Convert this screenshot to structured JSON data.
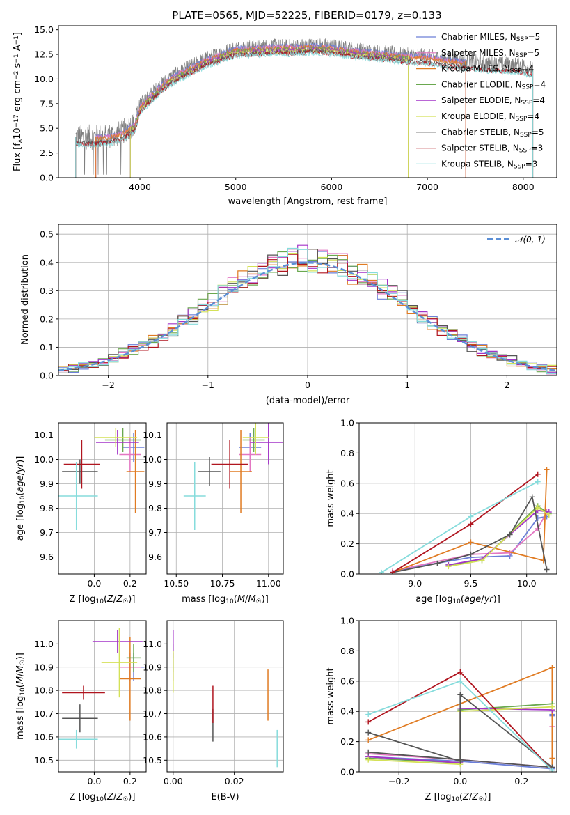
{
  "figure": {
    "title": "PLATE=0565, MJD=52225, FIBERID=0179, z=0.133"
  },
  "series_styles": [
    {
      "name": "Chabrier MILES, N_SSP=5",
      "label_pre": "Chabrier MILES, N",
      "label_sub": "SSP",
      "label_post": "=5",
      "color": "#6c7fd8"
    },
    {
      "name": "Salpeter MILES, N_SSP=5",
      "label_pre": "Salpeter MILES, N",
      "label_sub": "SSP",
      "label_post": "=5",
      "color": "#e377c2"
    },
    {
      "name": "Kroupa MILES, N_SSP=4",
      "label_pre": "Kroupa MILES, N",
      "label_sub": "SSP",
      "label_post": "=4",
      "color": "#e07b22"
    },
    {
      "name": "Chabrier ELODIE, N_SSP=4",
      "label_pre": "Chabrier ELODIE, N",
      "label_sub": "SSP",
      "label_post": "=4",
      "color": "#6aa84f"
    },
    {
      "name": "Salpeter ELODIE, N_SSP=4",
      "label_pre": "Salpeter ELODIE, N",
      "label_sub": "SSP",
      "label_post": "=4",
      "color": "#a334c8"
    },
    {
      "name": "Kroupa ELODIE, N_SSP=4",
      "label_pre": "Kroupa ELODIE, N",
      "label_sub": "SSP",
      "label_post": "=4",
      "color": "#d4e157"
    },
    {
      "name": "Chabrier STELIB, N_SSP=5",
      "label_pre": "Chabrier STELIB, N",
      "label_sub": "SSP",
      "label_post": "=5",
      "color": "#555555"
    },
    {
      "name": "Salpeter STELIB, N_SSP=3",
      "label_pre": "Salpeter STELIB, N",
      "label_sub": "SSP",
      "label_post": "=3",
      "color": "#b0151f"
    },
    {
      "name": "Kroupa STELIB, N_SSP=3",
      "label_pre": "Kroupa STELIB, N",
      "label_sub": "SSP",
      "label_post": "=3",
      "color": "#86dcdc"
    }
  ],
  "chart_data": [
    {
      "type": "line",
      "title": "PLATE=0565, MJD=52225, FIBERID=0179, z=0.133",
      "xlabel": "wavelength [Angstrom, rest frame]",
      "ylabel": "Flux [f_λ 10^-17 erg cm^-2 s^-1 A^-1]",
      "xlim": [
        3150,
        8350
      ],
      "ylim": [
        0,
        15.4
      ],
      "xticks": [
        4000,
        5000,
        6000,
        7000,
        8000
      ],
      "yticks": [
        0.0,
        2.5,
        5.0,
        7.5,
        10.0,
        12.5,
        15.0
      ],
      "ytick_labels": [
        "0.0",
        "2.5",
        "5.0",
        "7.5",
        "10.0",
        "12.5",
        "15.0"
      ],
      "grid": false,
      "legend": "right",
      "data_line_color": "#808080",
      "continuum": {
        "x": [
          3330,
          3500,
          3650,
          3800,
          3950,
          4000,
          4100,
          4200,
          4300,
          4400,
          4500,
          4600,
          4700,
          4800,
          4900,
          5000,
          5200,
          5400,
          5600,
          5800,
          6000,
          6200,
          6400,
          6600,
          6800,
          7000,
          7200,
          7400,
          7600,
          7800,
          8000,
          8100
        ],
        "y": [
          4.1,
          4.1,
          4.2,
          4.5,
          5.5,
          7.3,
          8.3,
          9.2,
          10.0,
          10.6,
          11.1,
          11.6,
          12.1,
          12.4,
          12.8,
          13.1,
          13.2,
          13.3,
          13.3,
          13.4,
          13.3,
          13.0,
          12.8,
          12.6,
          12.4,
          12.3,
          12.0,
          11.8,
          11.6,
          11.5,
          11.4,
          11.0
        ]
      },
      "series": [
        {
          "name": "Chabrier MILES, N_SSP=5",
          "x_range": [
            3540,
            7400
          ]
        },
        {
          "name": "Salpeter MILES, N_SSP=5",
          "x_range": [
            3540,
            7400
          ]
        },
        {
          "name": "Kroupa MILES, N_SSP=4",
          "x_range": [
            3540,
            7400
          ]
        },
        {
          "name": "Chabrier ELODIE, N_SSP=4",
          "x_range": [
            3900,
            6800
          ]
        },
        {
          "name": "Salpeter ELODIE, N_SSP=4",
          "x_range": [
            3900,
            6800
          ]
        },
        {
          "name": "Kroupa ELODIE, N_SSP=4",
          "x_range": [
            3900,
            6800
          ]
        },
        {
          "name": "Chabrier STELIB, N_SSP=5",
          "x_range": [
            3330,
            8100
          ]
        },
        {
          "name": "Salpeter STELIB, N_SSP=3",
          "x_range": [
            3330,
            8100
          ]
        },
        {
          "name": "Kroupa STELIB, N_SSP=3",
          "x_range": [
            3330,
            8100
          ]
        }
      ]
    },
    {
      "type": "step-histogram",
      "xlabel": "(data-model)/error",
      "ylabel": "Normed distribution",
      "xlim": [
        -2.5,
        2.5
      ],
      "ylim": [
        0,
        0.535
      ],
      "xticks": [
        -2,
        -1,
        0,
        1,
        2
      ],
      "xtick_labels": [
        "−2",
        "−1",
        "0",
        "1",
        "2"
      ],
      "yticks": [
        0.0,
        0.1,
        0.2,
        0.3,
        0.4,
        0.5
      ],
      "ytick_labels": [
        "0.0",
        "0.1",
        "0.2",
        "0.3",
        "0.4",
        "0.5"
      ],
      "grid": true,
      "legend": "top-right",
      "reference_curve": {
        "name": "N(0,1)",
        "label": "𝒩(0, 1)",
        "color": "#5b8fd6",
        "style": "dashed",
        "mean": 0,
        "sigma": 1
      },
      "bin_width": 0.1,
      "bin_range": [
        -2.5,
        2.5
      ],
      "bin_heights_note": "values approximated per series around the N(0,1) envelope"
    },
    {
      "type": "scatter-errorbar",
      "xlabel": "Z [log10(Z/Z☉)]",
      "ylabel": "age [log10(age/yr)]",
      "xlim": [
        -0.2,
        0.29
      ],
      "ylim": [
        9.53,
        10.15
      ],
      "xticks": [
        0.0,
        0.2
      ],
      "xtick_labels": [
        "0.0",
        "0.2"
      ],
      "yticks": [
        9.6,
        9.7,
        9.8,
        9.9,
        10.0,
        10.1
      ],
      "ytick_labels": [
        "9.6",
        "9.7",
        "9.8",
        "9.9",
        "10.0",
        "10.1"
      ],
      "grid": true,
      "points": [
        {
          "series": "Chabrier MILES, N_SSP=5",
          "x": 0.22,
          "xerr": 0.06,
          "y": 10.05,
          "yerr": 0.06
        },
        {
          "series": "Salpeter MILES, N_SSP=5",
          "x": 0.2,
          "xerr": 0.06,
          "y": 10.02,
          "yerr": 0.07
        },
        {
          "series": "Kroupa MILES, N_SSP=4",
          "x": 0.23,
          "xerr": 0.05,
          "y": 9.95,
          "yerr": 0.17
        },
        {
          "series": "Chabrier ELODIE, N_SSP=4",
          "x": 0.16,
          "xerr": 0.1,
          "y": 10.08,
          "yerr": 0.05
        },
        {
          "series": "Salpeter ELODIE, N_SSP=4",
          "x": 0.13,
          "xerr": 0.12,
          "y": 10.07,
          "yerr": 0.05
        },
        {
          "series": "Kroupa ELODIE, N_SSP=4",
          "x": 0.12,
          "xerr": 0.12,
          "y": 10.09,
          "yerr": 0.04
        },
        {
          "series": "Chabrier STELIB, N_SSP=5",
          "x": -0.08,
          "xerr": 0.1,
          "y": 9.95,
          "yerr": 0.05
        },
        {
          "series": "Salpeter STELIB, N_SSP=3",
          "x": -0.07,
          "xerr": 0.1,
          "y": 9.98,
          "yerr": 0.1
        },
        {
          "series": "Kroupa STELIB, N_SSP=3",
          "x": -0.1,
          "xerr": 0.12,
          "y": 9.85,
          "yerr": 0.14
        }
      ]
    },
    {
      "type": "scatter-errorbar",
      "xlabel": "mass [log10(M/M☉)]",
      "ylabel": "",
      "xlim": [
        10.45,
        11.08
      ],
      "ylim": [
        9.53,
        10.15
      ],
      "xticks": [
        10.5,
        10.75,
        11.0
      ],
      "xtick_labels": [
        "10.50",
        "10.75",
        "11.00"
      ],
      "yticks": [
        9.6,
        9.7,
        9.8,
        9.9,
        10.0,
        10.1
      ],
      "ytick_labels": [
        "9.6",
        "9.7",
        "9.8",
        "9.9",
        "10.0",
        "10.1"
      ],
      "grid": true,
      "points": [
        {
          "series": "Chabrier MILES, N_SSP=5",
          "x": 10.9,
          "xerr": 0.06,
          "y": 10.05,
          "yerr": 0.06
        },
        {
          "series": "Salpeter MILES, N_SSP=5",
          "x": 10.9,
          "xerr": 0.06,
          "y": 10.02,
          "yerr": 0.07
        },
        {
          "series": "Kroupa MILES, N_SSP=4",
          "x": 10.85,
          "xerr": 0.06,
          "y": 9.95,
          "yerr": 0.17
        },
        {
          "series": "Chabrier ELODIE, N_SSP=4",
          "x": 10.92,
          "xerr": 0.06,
          "y": 10.08,
          "yerr": 0.05
        },
        {
          "series": "Salpeter ELODIE, N_SSP=4",
          "x": 11.0,
          "xerr": 0.1,
          "y": 10.07,
          "yerr": 0.09
        },
        {
          "series": "Kroupa ELODIE, N_SSP=4",
          "x": 10.93,
          "xerr": 0.07,
          "y": 10.09,
          "yerr": 0.07
        },
        {
          "series": "Chabrier STELIB, N_SSP=5",
          "x": 10.68,
          "xerr": 0.06,
          "y": 9.95,
          "yerr": 0.06
        },
        {
          "series": "Salpeter STELIB, N_SSP=3",
          "x": 10.79,
          "xerr": 0.1,
          "y": 9.98,
          "yerr": 0.1
        },
        {
          "series": "Kroupa STELIB, N_SSP=3",
          "x": 10.6,
          "xerr": 0.06,
          "y": 9.85,
          "yerr": 0.14
        }
      ]
    },
    {
      "type": "line",
      "xlabel": "age [log10(age/yr)]",
      "ylabel": "mass weight",
      "xlim": [
        8.5,
        10.27
      ],
      "ylim": [
        0,
        1
      ],
      "xticks": [
        9.0,
        9.5,
        10.0
      ],
      "xtick_labels": [
        "9.0",
        "9.5",
        "10.0"
      ],
      "yticks": [
        0,
        0.2,
        0.4,
        0.6,
        0.8,
        1.0
      ],
      "ytick_labels": [
        "0.0",
        "0.2",
        "0.4",
        "0.6",
        "0.8",
        "1.0"
      ],
      "grid": true,
      "series": [
        {
          "name": "Chabrier MILES, N_SSP=5",
          "x": [
            8.8,
            9.5,
            9.85,
            10.1,
            10.18
          ],
          "y": [
            0.02,
            0.11,
            0.12,
            0.37,
            0.38
          ]
        },
        {
          "name": "Salpeter MILES, N_SSP=5",
          "x": [
            8.8,
            9.5,
            9.85,
            10.1,
            10.18
          ],
          "y": [
            0.02,
            0.13,
            0.14,
            0.3,
            0.41
          ]
        },
        {
          "name": "Kroupa MILES, N_SSP=4",
          "x": [
            8.8,
            9.5,
            10.15,
            10.18
          ],
          "y": [
            0.01,
            0.21,
            0.09,
            0.69
          ]
        },
        {
          "name": "Chabrier ELODIE, N_SSP=4",
          "x": [
            9.3,
            9.6,
            10.1,
            10.2
          ],
          "y": [
            0.06,
            0.09,
            0.45,
            0.4
          ]
        },
        {
          "name": "Salpeter ELODIE, N_SSP=4",
          "x": [
            9.3,
            9.6,
            10.1,
            10.2
          ],
          "y": [
            0.06,
            0.1,
            0.42,
            0.41
          ]
        },
        {
          "name": "Kroupa ELODIE, N_SSP=4",
          "x": [
            9.3,
            9.6,
            10.1,
            10.2
          ],
          "y": [
            0.05,
            0.09,
            0.44,
            0.39
          ]
        },
        {
          "name": "Chabrier STELIB, N_SSP=5",
          "x": [
            8.8,
            9.2,
            9.5,
            9.85,
            10.05,
            10.18
          ],
          "y": [
            0.01,
            0.07,
            0.13,
            0.26,
            0.51,
            0.03
          ]
        },
        {
          "name": "Salpeter STELIB, N_SSP=3",
          "x": [
            8.8,
            9.5,
            10.1
          ],
          "y": [
            0.01,
            0.33,
            0.66
          ]
        },
        {
          "name": "Kroupa STELIB, N_SSP=3",
          "x": [
            8.7,
            9.5,
            10.1
          ],
          "y": [
            0.01,
            0.38,
            0.61
          ]
        }
      ]
    },
    {
      "type": "scatter-errorbar",
      "xlabel": "Z [log10(Z/Z☉)]",
      "ylabel": "mass [log10(M/M☉)]",
      "xlim": [
        -0.2,
        0.29
      ],
      "ylim": [
        10.45,
        11.1
      ],
      "xticks": [
        0.0,
        0.2
      ],
      "xtick_labels": [
        "0.0",
        "0.2"
      ],
      "yticks": [
        10.5,
        10.6,
        10.7,
        10.8,
        10.9,
        11.0
      ],
      "ytick_labels": [
        "10.5",
        "10.6",
        "10.7",
        "10.8",
        "10.9",
        "11.0"
      ],
      "grid": true,
      "points": [
        {
          "series": "Chabrier MILES, N_SSP=5",
          "x": 0.22,
          "xerr": 0.06,
          "y": 10.9,
          "yerr": 0.06
        },
        {
          "series": "Salpeter MILES, N_SSP=5",
          "x": 0.2,
          "xerr": 0.06,
          "y": 10.9,
          "yerr": 0.06
        },
        {
          "series": "Kroupa MILES, N_SSP=4",
          "x": 0.2,
          "xerr": 0.06,
          "y": 10.85,
          "yerr": 0.18
        },
        {
          "series": "Chabrier ELODIE, N_SSP=4",
          "x": 0.22,
          "xerr": 0.04,
          "y": 10.94,
          "yerr": 0.06
        },
        {
          "series": "Salpeter ELODIE, N_SSP=4",
          "x": 0.13,
          "xerr": 0.14,
          "y": 11.01,
          "yerr": 0.05
        },
        {
          "series": "Kroupa ELODIE, N_SSP=4",
          "x": 0.14,
          "xerr": 0.1,
          "y": 10.92,
          "yerr": 0.15
        },
        {
          "series": "Chabrier STELIB, N_SSP=5",
          "x": -0.08,
          "xerr": 0.1,
          "y": 10.68,
          "yerr": 0.06
        },
        {
          "series": "Salpeter STELIB, N_SSP=3",
          "x": -0.06,
          "xerr": 0.12,
          "y": 10.79,
          "yerr": 0.03
        },
        {
          "series": "Kroupa STELIB, N_SSP=3",
          "x": -0.1,
          "xerr": 0.12,
          "y": 10.59,
          "yerr": 0.04
        }
      ]
    },
    {
      "type": "scatter-errorbar",
      "xlabel": "E(B-V)",
      "ylabel": "",
      "xlim": [
        -0.002,
        0.036
      ],
      "ylim": [
        10.45,
        11.1
      ],
      "xticks": [
        0.0,
        0.02
      ],
      "xtick_labels": [
        "0.00",
        "0.02"
      ],
      "yticks": [
        10.5,
        10.6,
        10.7,
        10.8,
        10.9,
        11.0
      ],
      "ytick_labels": [
        "10.5",
        "10.6",
        "10.7",
        "10.8",
        "10.9",
        "11.0"
      ],
      "grid": true,
      "points": [
        {
          "series": "Chabrier MILES, N_SSP=5",
          "x": 0.0,
          "y": 10.9,
          "yerr": 0.06
        },
        {
          "series": "Salpeter MILES, N_SSP=5",
          "x": 0.0,
          "y": 10.9,
          "yerr": 0.06
        },
        {
          "series": "Kroupa MILES, N_SSP=4",
          "x": 0.031,
          "y": 10.78,
          "yerr": 0.11
        },
        {
          "series": "Chabrier ELODIE, N_SSP=4",
          "x": 0.0,
          "y": 10.94,
          "yerr": 0.06
        },
        {
          "series": "Salpeter ELODIE, N_SSP=4",
          "x": 0.0,
          "y": 11.0,
          "yerr": 0.06
        },
        {
          "series": "Kroupa ELODIE, N_SSP=4",
          "x": 0.0,
          "y": 10.88,
          "yerr": 0.09
        },
        {
          "series": "Chabrier STELIB, N_SSP=5",
          "x": 0.013,
          "y": 10.65,
          "yerr": 0.07
        },
        {
          "series": "Salpeter STELIB, N_SSP=3",
          "x": 0.013,
          "y": 10.74,
          "yerr": 0.08
        },
        {
          "series": "Kroupa STELIB, N_SSP=3",
          "x": 0.034,
          "y": 10.55,
          "yerr": 0.08
        }
      ]
    },
    {
      "type": "line",
      "xlabel": "Z [log10(Z/Z☉)]",
      "ylabel": "mass weight",
      "xlim": [
        -0.33,
        0.315
      ],
      "ylim": [
        0,
        1
      ],
      "xticks": [
        -0.2,
        0.0,
        0.2
      ],
      "xtick_labels": [
        "−0.2",
        "0.0",
        "0.2"
      ],
      "yticks": [
        0,
        0.2,
        0.4,
        0.6,
        0.8,
        1.0
      ],
      "ytick_labels": [
        "0.0",
        "0.2",
        "0.4",
        "0.6",
        "0.8",
        "1.0"
      ],
      "grid": true,
      "series": [
        {
          "name": "Chabrier MILES, N_SSP=5",
          "x": [
            -0.3,
            0.0,
            0.3,
            0.3,
            0.3
          ],
          "y": [
            0.1,
            0.07,
            0.02,
            0.37,
            0.38
          ]
        },
        {
          "name": "Salpeter MILES, N_SSP=5",
          "x": [
            -0.3,
            0.0,
            0.3,
            0.3,
            0.3
          ],
          "y": [
            0.12,
            0.08,
            0.03,
            0.3,
            0.41
          ]
        },
        {
          "name": "Kroupa MILES, N_SSP=4",
          "x": [
            -0.3,
            0.3,
            0.3,
            0.3
          ],
          "y": [
            0.21,
            0.69,
            0.09,
            0.01
          ]
        },
        {
          "name": "Chabrier ELODIE, N_SSP=4",
          "x": [
            -0.3,
            0.0,
            0.0,
            0.3
          ],
          "y": [
            0.09,
            0.06,
            0.41,
            0.45
          ]
        },
        {
          "name": "Salpeter ELODIE, N_SSP=4",
          "x": [
            -0.3,
            0.0,
            0.0,
            0.3
          ],
          "y": [
            0.1,
            0.06,
            0.42,
            0.41
          ]
        },
        {
          "name": "Kroupa ELODIE, N_SSP=4",
          "x": [
            -0.3,
            0.0,
            0.0,
            0.3
          ],
          "y": [
            0.08,
            0.05,
            0.4,
            0.43
          ]
        },
        {
          "name": "Chabrier STELIB, N_SSP=5",
          "x": [
            -0.3,
            0.0,
            0.0,
            0.3,
            -0.3
          ],
          "y": [
            0.26,
            0.07,
            0.51,
            0.03,
            0.13
          ]
        },
        {
          "name": "Salpeter STELIB, N_SSP=3",
          "x": [
            -0.3,
            0.0,
            0.3
          ],
          "y": [
            0.33,
            0.66,
            0.01
          ]
        },
        {
          "name": "Kroupa STELIB, N_SSP=3",
          "x": [
            -0.3,
            0.0,
            0.3
          ],
          "y": [
            0.38,
            0.6,
            0.01
          ]
        }
      ]
    }
  ]
}
